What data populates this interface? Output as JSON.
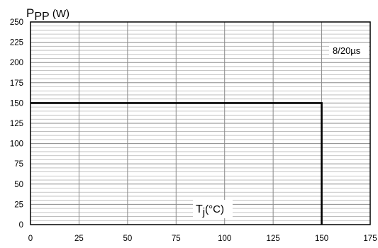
{
  "chart_data": {
    "type": "line",
    "title": "",
    "ylabel": {
      "main": "P",
      "sub": "PP",
      "unit": " (W)"
    },
    "xlabel": {
      "main": "T",
      "sub": "j",
      "unit": "(°C)"
    },
    "annotation": "8/20µs",
    "xlim": [
      0,
      175
    ],
    "ylim": [
      0,
      250
    ],
    "xticks": [
      0,
      25,
      50,
      75,
      100,
      125,
      150,
      175
    ],
    "yticks": [
      0,
      25,
      50,
      75,
      100,
      125,
      150,
      175,
      200,
      225,
      250
    ],
    "minor_x_step": 25,
    "minor_y_step": 5,
    "grid": true,
    "series": [
      {
        "x": [
          0,
          150,
          150
        ],
        "y": [
          150,
          150,
          0
        ]
      }
    ]
  },
  "style": {
    "major_grid_color": "#8a8a8a",
    "minor_grid_color": "#b4b4b4",
    "line_color": "#000000",
    "frame_color": "#000000"
  }
}
